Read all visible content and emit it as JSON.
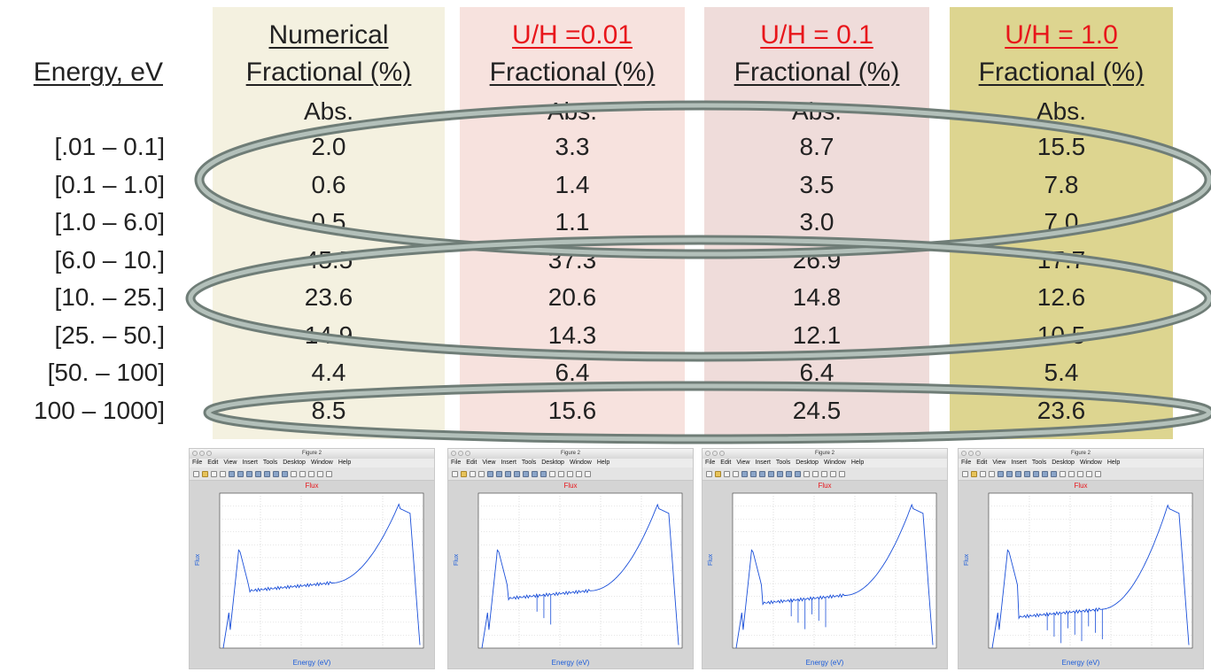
{
  "row_header": "Energy, eV",
  "columns": [
    {
      "line1": "Numerical",
      "line2": "Fractional (%)",
      "line3": "Abs.",
      "bg": "#f4f1e0",
      "line1_color": "#222222",
      "values": [
        "2.0",
        "0.6",
        "0.5",
        "45.5",
        "23.6",
        "14.9",
        "4.4",
        "8.5"
      ]
    },
    {
      "line1": "U/H =0.01",
      "line2": "Fractional (%)",
      "line3": "Abs.",
      "bg": "#f7e2de",
      "line1_color": "#e8161b",
      "values": [
        "3.3",
        "1.4",
        "1.1",
        "37.3",
        "20.6",
        "14.3",
        "6.4",
        "15.6"
      ]
    },
    {
      "line1": "U/H = 0.1",
      "line2": "Fractional (%)",
      "line3": "Abs.",
      "bg": "#efdcda",
      "line1_color": "#e8161b",
      "values": [
        "8.7",
        "3.5",
        "3.0",
        "26.9",
        "14.8",
        "12.1",
        "6.4",
        "24.5"
      ]
    },
    {
      "line1": "U/H = 1.0",
      "line2": "Fractional (%)",
      "line3": "Abs.",
      "bg": "#ddd590",
      "line1_color": "#e8161b",
      "values": [
        "15.5",
        "7.8",
        "7.0",
        "17.7",
        "12.6",
        "10.5",
        "5.4",
        "23.6"
      ]
    }
  ],
  "rows": [
    "[.01 – 0.1]",
    "[0.1 – 1.0]",
    "[1.0 – 6.0]",
    "[6.0 – 10.]",
    "[10. – 25.]",
    "[25. – 50.]",
    "[50. – 100]",
    "100 – 1000]"
  ],
  "figures": [
    {
      "window_title": "Figure 2",
      "plot_title": "Flux",
      "ylabel": "Flux",
      "xlabel": "Energy (eV)",
      "dips": 0
    },
    {
      "window_title": "Figure 2",
      "plot_title": "Flux",
      "ylabel": "Flux",
      "xlabel": "Energy (eV)",
      "dips": 1
    },
    {
      "window_title": "Figure 2",
      "plot_title": "Flux",
      "ylabel": "Flux",
      "xlabel": "Energy (eV)",
      "dips": 2
    },
    {
      "window_title": "Figure 2",
      "plot_title": "Flux",
      "ylabel": "Flux",
      "xlabel": "Energy (eV)",
      "dips": 3
    }
  ],
  "menu_items": [
    "File",
    "Edit",
    "View",
    "Insert",
    "Tools",
    "Desktop",
    "Window",
    "Help"
  ],
  "colors": {
    "oval_stroke": "#7d8c86",
    "oval_fill_edge": "#a6b3ad",
    "plot_line": "#1a4fd9",
    "accent_red": "#e8161b"
  }
}
